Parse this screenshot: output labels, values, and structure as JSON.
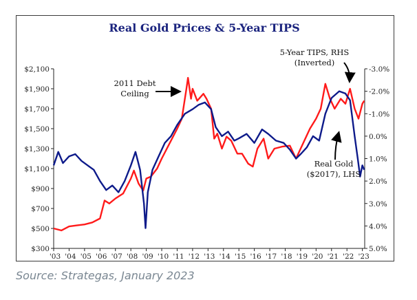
{
  "source_text": "Source: Strategas, January 2023",
  "chart_data": {
    "type": "line",
    "title": "Real Gold Prices & 5-Year TIPS",
    "x_range": [
      2003.0,
      2023.15
    ],
    "x_ticks": [
      "'03",
      "'04",
      "'05",
      "'06",
      "'07",
      "'08",
      "'09",
      "'10",
      "'11",
      "'12",
      "'13",
      "'14",
      "'15",
      "'16",
      "'17",
      "'18",
      "'19",
      "'20",
      "'21",
      "'22",
      "'23"
    ],
    "left_axis": {
      "range": [
        300,
        2100
      ],
      "ticks": [
        "$2,100",
        "$1,900",
        "$1,700",
        "$1,500",
        "$1,300",
        "$1,100",
        "$900",
        "$700",
        "$500",
        "$300"
      ],
      "tick_values": [
        2100,
        1900,
        1700,
        1500,
        1300,
        1100,
        900,
        700,
        500,
        300
      ]
    },
    "right_axis": {
      "inverted": true,
      "range": [
        -3.0,
        5.0
      ],
      "ticks": [
        "-3.0%",
        "-2.0%",
        "-1.0%",
        "0.0%",
        "1.0%",
        "2.0%",
        "3.0%",
        "4.0%",
        "5.0%"
      ],
      "tick_values": [
        -3,
        -2,
        -1,
        0,
        1,
        2,
        3,
        4,
        5
      ]
    },
    "series": [
      {
        "name": "Real Gold ($2017), LHS",
        "axis": "left",
        "color": "#ff1a1a",
        "points": [
          [
            2003.0,
            500
          ],
          [
            2003.5,
            480
          ],
          [
            2004.0,
            520
          ],
          [
            2004.5,
            530
          ],
          [
            2005.0,
            540
          ],
          [
            2005.5,
            560
          ],
          [
            2006.0,
            600
          ],
          [
            2006.3,
            780
          ],
          [
            2006.6,
            750
          ],
          [
            2007.0,
            800
          ],
          [
            2007.5,
            850
          ],
          [
            2008.0,
            1000
          ],
          [
            2008.2,
            1080
          ],
          [
            2008.5,
            950
          ],
          [
            2008.8,
            880
          ],
          [
            2009.0,
            1000
          ],
          [
            2009.3,
            1020
          ],
          [
            2009.7,
            1100
          ],
          [
            2010.0,
            1200
          ],
          [
            2010.5,
            1350
          ],
          [
            2011.0,
            1500
          ],
          [
            2011.3,
            1600
          ],
          [
            2011.6,
            1900
          ],
          [
            2011.7,
            2010
          ],
          [
            2011.9,
            1800
          ],
          [
            2012.0,
            1900
          ],
          [
            2012.3,
            1780
          ],
          [
            2012.7,
            1850
          ],
          [
            2012.9,
            1800
          ],
          [
            2013.2,
            1700
          ],
          [
            2013.4,
            1400
          ],
          [
            2013.6,
            1450
          ],
          [
            2013.9,
            1300
          ],
          [
            2014.2,
            1420
          ],
          [
            2014.5,
            1380
          ],
          [
            2014.9,
            1250
          ],
          [
            2015.2,
            1250
          ],
          [
            2015.6,
            1150
          ],
          [
            2015.9,
            1120
          ],
          [
            2016.2,
            1300
          ],
          [
            2016.6,
            1400
          ],
          [
            2016.9,
            1200
          ],
          [
            2017.3,
            1300
          ],
          [
            2017.8,
            1320
          ],
          [
            2018.3,
            1330
          ],
          [
            2018.7,
            1200
          ],
          [
            2019.0,
            1300
          ],
          [
            2019.6,
            1500
          ],
          [
            2020.0,
            1600
          ],
          [
            2020.3,
            1700
          ],
          [
            2020.6,
            1950
          ],
          [
            2020.9,
            1800
          ],
          [
            2021.2,
            1700
          ],
          [
            2021.6,
            1800
          ],
          [
            2021.9,
            1750
          ],
          [
            2022.2,
            1900
          ],
          [
            2022.5,
            1700
          ],
          [
            2022.75,
            1600
          ],
          [
            2023.0,
            1750
          ],
          [
            2023.12,
            1780
          ]
        ]
      },
      {
        "name": "5-Year TIPS, RHS (Inverted)",
        "axis": "right",
        "color": "#0d1a8a",
        "points": [
          [
            2003.0,
            1.3
          ],
          [
            2003.3,
            0.7
          ],
          [
            2003.6,
            1.2
          ],
          [
            2004.0,
            0.9
          ],
          [
            2004.4,
            0.8
          ],
          [
            2004.8,
            1.1
          ],
          [
            2005.2,
            1.3
          ],
          [
            2005.6,
            1.5
          ],
          [
            2006.0,
            2.0
          ],
          [
            2006.4,
            2.4
          ],
          [
            2006.8,
            2.2
          ],
          [
            2007.2,
            2.5
          ],
          [
            2007.6,
            2.0
          ],
          [
            2008.0,
            1.3
          ],
          [
            2008.3,
            0.7
          ],
          [
            2008.6,
            1.5
          ],
          [
            2008.85,
            3.0
          ],
          [
            2008.95,
            4.1
          ],
          [
            2009.1,
            2.5
          ],
          [
            2009.4,
            1.5
          ],
          [
            2009.8,
            0.9
          ],
          [
            2010.2,
            0.3
          ],
          [
            2010.6,
            0.0
          ],
          [
            2011.0,
            -0.5
          ],
          [
            2011.5,
            -1.0
          ],
          [
            2012.0,
            -1.2
          ],
          [
            2012.4,
            -1.4
          ],
          [
            2012.8,
            -1.5
          ],
          [
            2013.2,
            -1.2
          ],
          [
            2013.5,
            -0.4
          ],
          [
            2013.9,
            0.0
          ],
          [
            2014.3,
            -0.2
          ],
          [
            2014.7,
            0.2
          ],
          [
            2015.0,
            0.1
          ],
          [
            2015.5,
            -0.1
          ],
          [
            2016.0,
            0.3
          ],
          [
            2016.5,
            -0.3
          ],
          [
            2016.9,
            -0.1
          ],
          [
            2017.4,
            0.2
          ],
          [
            2017.9,
            0.3
          ],
          [
            2018.3,
            0.6
          ],
          [
            2018.7,
            1.0
          ],
          [
            2019.0,
            0.8
          ],
          [
            2019.4,
            0.5
          ],
          [
            2019.8,
            0.0
          ],
          [
            2020.2,
            0.2
          ],
          [
            2020.6,
            -1.0
          ],
          [
            2021.0,
            -1.7
          ],
          [
            2021.5,
            -2.0
          ],
          [
            2021.9,
            -1.9
          ],
          [
            2022.2,
            -1.6
          ],
          [
            2022.5,
            0.0
          ],
          [
            2022.7,
            1.0
          ],
          [
            2022.85,
            1.8
          ],
          [
            2023.0,
            1.3
          ],
          [
            2023.12,
            1.5
          ]
        ]
      }
    ],
    "annotations": [
      {
        "text_lines": [
          "2011 Debt",
          "Ceiling"
        ]
      },
      {
        "text_lines": [
          "5-Year TIPS, RHS",
          "(Inverted)"
        ]
      },
      {
        "text_lines": [
          "Real Gold",
          "($2017), LHS"
        ]
      }
    ]
  }
}
